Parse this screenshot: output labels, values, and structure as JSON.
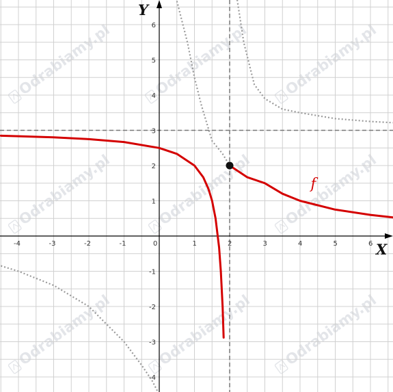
{
  "chart_data": {
    "type": "line",
    "x_axis_label": "X",
    "y_axis_label": "Y",
    "xlim": [
      -4.5,
      6.7
    ],
    "ylim": [
      -4.3,
      6.8
    ],
    "grid": true,
    "x_ticks": [
      "-4",
      "-3",
      "-2",
      "-1",
      "0",
      "1",
      "2",
      "3",
      "4",
      "5",
      "6"
    ],
    "y_ticks": [
      "-4",
      "-3",
      "-2",
      "-1",
      "1",
      "2",
      "3",
      "4",
      "5",
      "6"
    ],
    "series": [
      {
        "name": "f",
        "color": "#d40000",
        "style": "solid",
        "segments": [
          {
            "x": [
              -4.5,
              -4,
              -3,
              -2,
              -1,
              0,
              0.5,
              1,
              1.25,
              1.4,
              1.5,
              1.6,
              1.7,
              1.75,
              1.8,
              1.83
            ],
            "y": [
              2.846,
              2.833,
              2.8,
              2.75,
              2.667,
              2.5,
              2.333,
              2,
              1.667,
              1.333,
              1,
              0.5,
              -0.333,
              -1,
              -2,
              -2.882
            ]
          },
          {
            "x": [
              2,
              2.5,
              3,
              3.5,
              4,
              5,
              6,
              6.7
            ],
            "y": [
              2,
              1.667,
              1.5,
              1.2,
              1,
              0.75,
              0.6,
              0.522
            ]
          }
        ]
      },
      {
        "name": "",
        "color": "#999999",
        "style": "dotted",
        "segments": [
          {
            "x": [
              -4.5,
              -4,
              -3,
              -2,
              -1,
              -0.5,
              -0.2,
              0
            ],
            "y": [
              -0.846,
              -1,
              -1.4,
              -2,
              -3,
              -3.667,
              -4.111,
              -4.5
            ]
          },
          {
            "x": [
              0.5,
              0.8,
              1,
              1.2,
              1.5,
              1.8,
              2
            ],
            "y": [
              6.667,
              5.5,
              4.5,
              3.7,
              2.7,
              2.333,
              2
            ]
          }
        ]
      },
      {
        "name": "",
        "color": "#999999",
        "style": "dotted",
        "segments": [
          {
            "x": [
              2.2,
              2.4,
              2.7,
              3,
              3.5,
              4,
              5,
              6,
              6.7
            ],
            "y": [
              6.8,
              5.5,
              4.3,
              3.9,
              3.6,
              3.5,
              3.333,
              3.25,
              3.213
            ]
          }
        ]
      }
    ],
    "asymptotes": [
      {
        "orientation": "vertical",
        "value": 2
      },
      {
        "orientation": "horizontal",
        "value": 3
      }
    ],
    "points": [
      {
        "x": 2,
        "y": 2
      }
    ],
    "annotations": [
      {
        "text": "f",
        "x": 4.3,
        "y": 1.35,
        "color": "#d40000"
      }
    ],
    "watermark": "Odrabiamy.pl"
  }
}
